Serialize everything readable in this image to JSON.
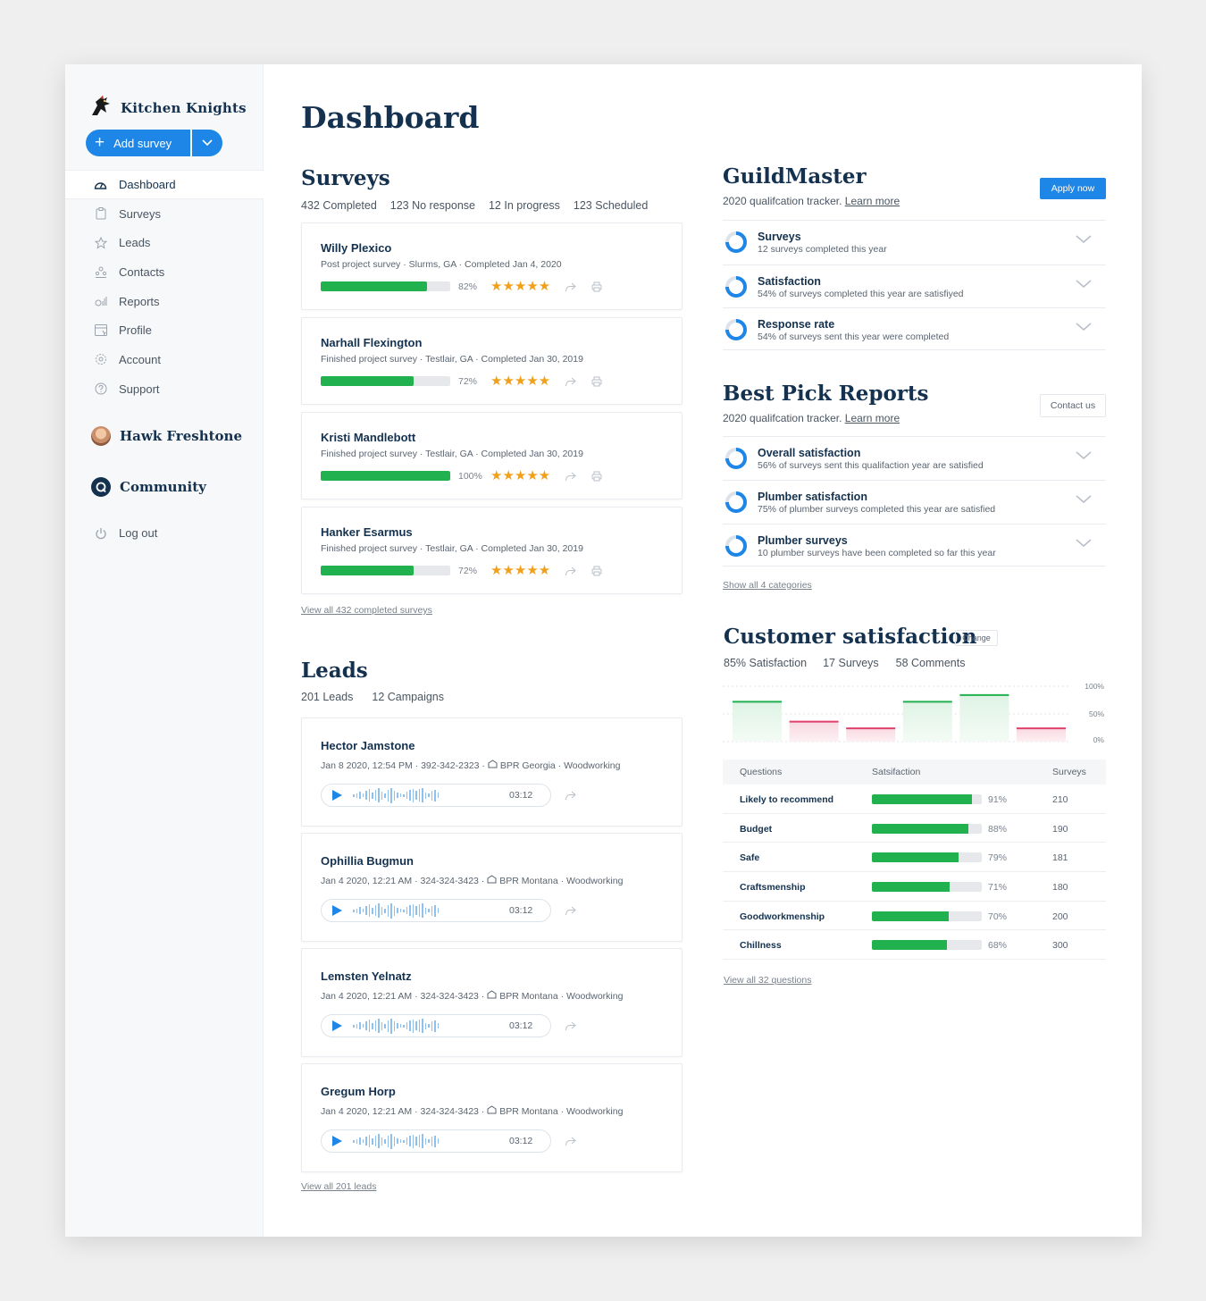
{
  "brand": {
    "name": "Kitchen Knights"
  },
  "add_button": {
    "label": "Add survey"
  },
  "nav": [
    {
      "label": "Dashboard",
      "icon": "dashboard-icon",
      "active": true
    },
    {
      "label": "Surveys",
      "icon": "clipboard-icon"
    },
    {
      "label": "Leads",
      "icon": "star-icon"
    },
    {
      "label": "Contacts",
      "icon": "people-icon"
    },
    {
      "label": "Reports",
      "icon": "chart-icon"
    },
    {
      "label": "Profile",
      "icon": "profile-icon"
    },
    {
      "label": "Account",
      "icon": "gear-icon"
    },
    {
      "label": "Support",
      "icon": "help-icon"
    }
  ],
  "user": {
    "name": "Hawk Freshtone"
  },
  "community": {
    "label": "Community"
  },
  "logout": {
    "label": "Log out"
  },
  "page": {
    "title": "Dashboard"
  },
  "surveys": {
    "title": "Surveys",
    "stats": [
      "432 Completed",
      "123 No response",
      "12 In progress",
      "123 Scheduled"
    ],
    "items": [
      {
        "name": "Willy Plexico",
        "meta": "Post project survey · Slurms, GA · Completed Jan 4, 2020",
        "progress": 82,
        "pct": "82%",
        "stars": "★★★★★"
      },
      {
        "name": "Narhall Flexington",
        "meta": "Finished project survey · Testlair, GA · Completed Jan 30, 2019",
        "progress": 72,
        "pct": "72%",
        "stars": "★★★★★"
      },
      {
        "name": "Kristi Mandlebott",
        "meta": "Finished project survey · Testlair, GA · Completed Jan 30, 2019",
        "progress": 100,
        "pct": "100%",
        "stars": "★★★★★"
      },
      {
        "name": "Hanker Esarmus",
        "meta": "Finished project survey · Testlair, GA · Completed Jan 30, 2019",
        "progress": 72,
        "pct": "72%",
        "stars": "★★★★★"
      }
    ],
    "view_all": "View all 432 completed surveys"
  },
  "leads": {
    "title": "Leads",
    "stats": [
      "201 Leads",
      "12 Campaigns"
    ],
    "items": [
      {
        "name": "Hector Jamstone",
        "meta_a": "Jan 8 2020, 12:54 PM · 392-342-2323 ·",
        "meta_b": "BPR Georgia · Woodworking",
        "duration": "03:12"
      },
      {
        "name": "Ophillia Bugmun",
        "meta_a": "Jan 4 2020, 12:21 AM · 324-324-3423 ·",
        "meta_b": "BPR Montana · Woodworking",
        "duration": "03:12"
      },
      {
        "name": "Lemsten Yelnatz",
        "meta_a": "Jan 4 2020, 12:21 AM · 324-324-3423 ·",
        "meta_b": "BPR Montana · Woodworking",
        "duration": "03:12"
      },
      {
        "name": "Gregum Horp",
        "meta_a": "Jan 4 2020, 12:21 AM · 324-324-3423 ·",
        "meta_b": "BPR Montana · Woodworking",
        "duration": "03:12"
      }
    ],
    "view_all": "View all 201 leads"
  },
  "guildmaster": {
    "title": "GuildMaster",
    "subtitle": "2020 qualifcation tracker.",
    "learn_more": "Learn more",
    "apply": "Apply now",
    "items": [
      {
        "title": "Surveys",
        "desc": "12 surveys completed this year"
      },
      {
        "title": "Satisfaction",
        "desc": "54% of surveys completed this year are satisfiyed"
      },
      {
        "title": "Response rate",
        "desc": "54% of surveys sent this year were completed"
      }
    ]
  },
  "best_pick": {
    "title": "Best Pick Reports",
    "subtitle": "2020 qualifcation tracker.",
    "learn_more": "Learn more",
    "contact": "Contact us",
    "items": [
      {
        "title": "Overall satisfaction",
        "desc": "56% of surveys sent this qualifaction year are satisfied"
      },
      {
        "title": "Plumber satisfaction",
        "desc": "75% of plumber surveys completed this year are satisfied"
      },
      {
        "title": "Plumber surveys",
        "desc": "10 plumber surveys have been completed so far this year"
      }
    ],
    "show_all": "Show all 4 categories"
  },
  "satisfaction": {
    "title": "Customer satisfaction",
    "change": "Change",
    "stats": [
      "85% Satisfaction",
      "17 Surveys",
      "58 Comments"
    ],
    "axis": [
      "100%",
      "50%",
      "0%"
    ],
    "columns": [
      "Questions",
      "Satsifaction",
      "Surveys"
    ],
    "rows": [
      {
        "q": "Likely to recommend",
        "value": 91,
        "pct": "91%",
        "n": "210"
      },
      {
        "q": "Budget",
        "value": 88,
        "pct": "88%",
        "n": "190"
      },
      {
        "q": "Safe",
        "value": 79,
        "pct": "79%",
        "n": "181"
      },
      {
        "q": "Craftsmenship",
        "value": 71,
        "pct": "71%",
        "n": "180"
      },
      {
        "q": "Goodworkmenship",
        "value": 70,
        "pct": "70%",
        "n": "200"
      },
      {
        "q": "Chillness",
        "value": 68,
        "pct": "68%",
        "n": "300"
      }
    ],
    "view_all": "View all 32 questions"
  },
  "chart_data": {
    "type": "bar",
    "categories": [
      "1",
      "2",
      "3",
      "4",
      "5",
      "6"
    ],
    "values": [
      72,
      36,
      24,
      72,
      84,
      24
    ],
    "colors": [
      "#21b14f",
      "#e0416c",
      "#e0416c",
      "#21b14f",
      "#21b14f",
      "#e0416c"
    ],
    "ylim": [
      0,
      100
    ],
    "ytick_labels": [
      "100%",
      "50%",
      "0%"
    ],
    "grid": true
  },
  "colors": {
    "accent": "#1e86e6",
    "good": "#21b14f",
    "bad": "#e0416c",
    "navy": "#14324f",
    "star": "#f2a019"
  }
}
